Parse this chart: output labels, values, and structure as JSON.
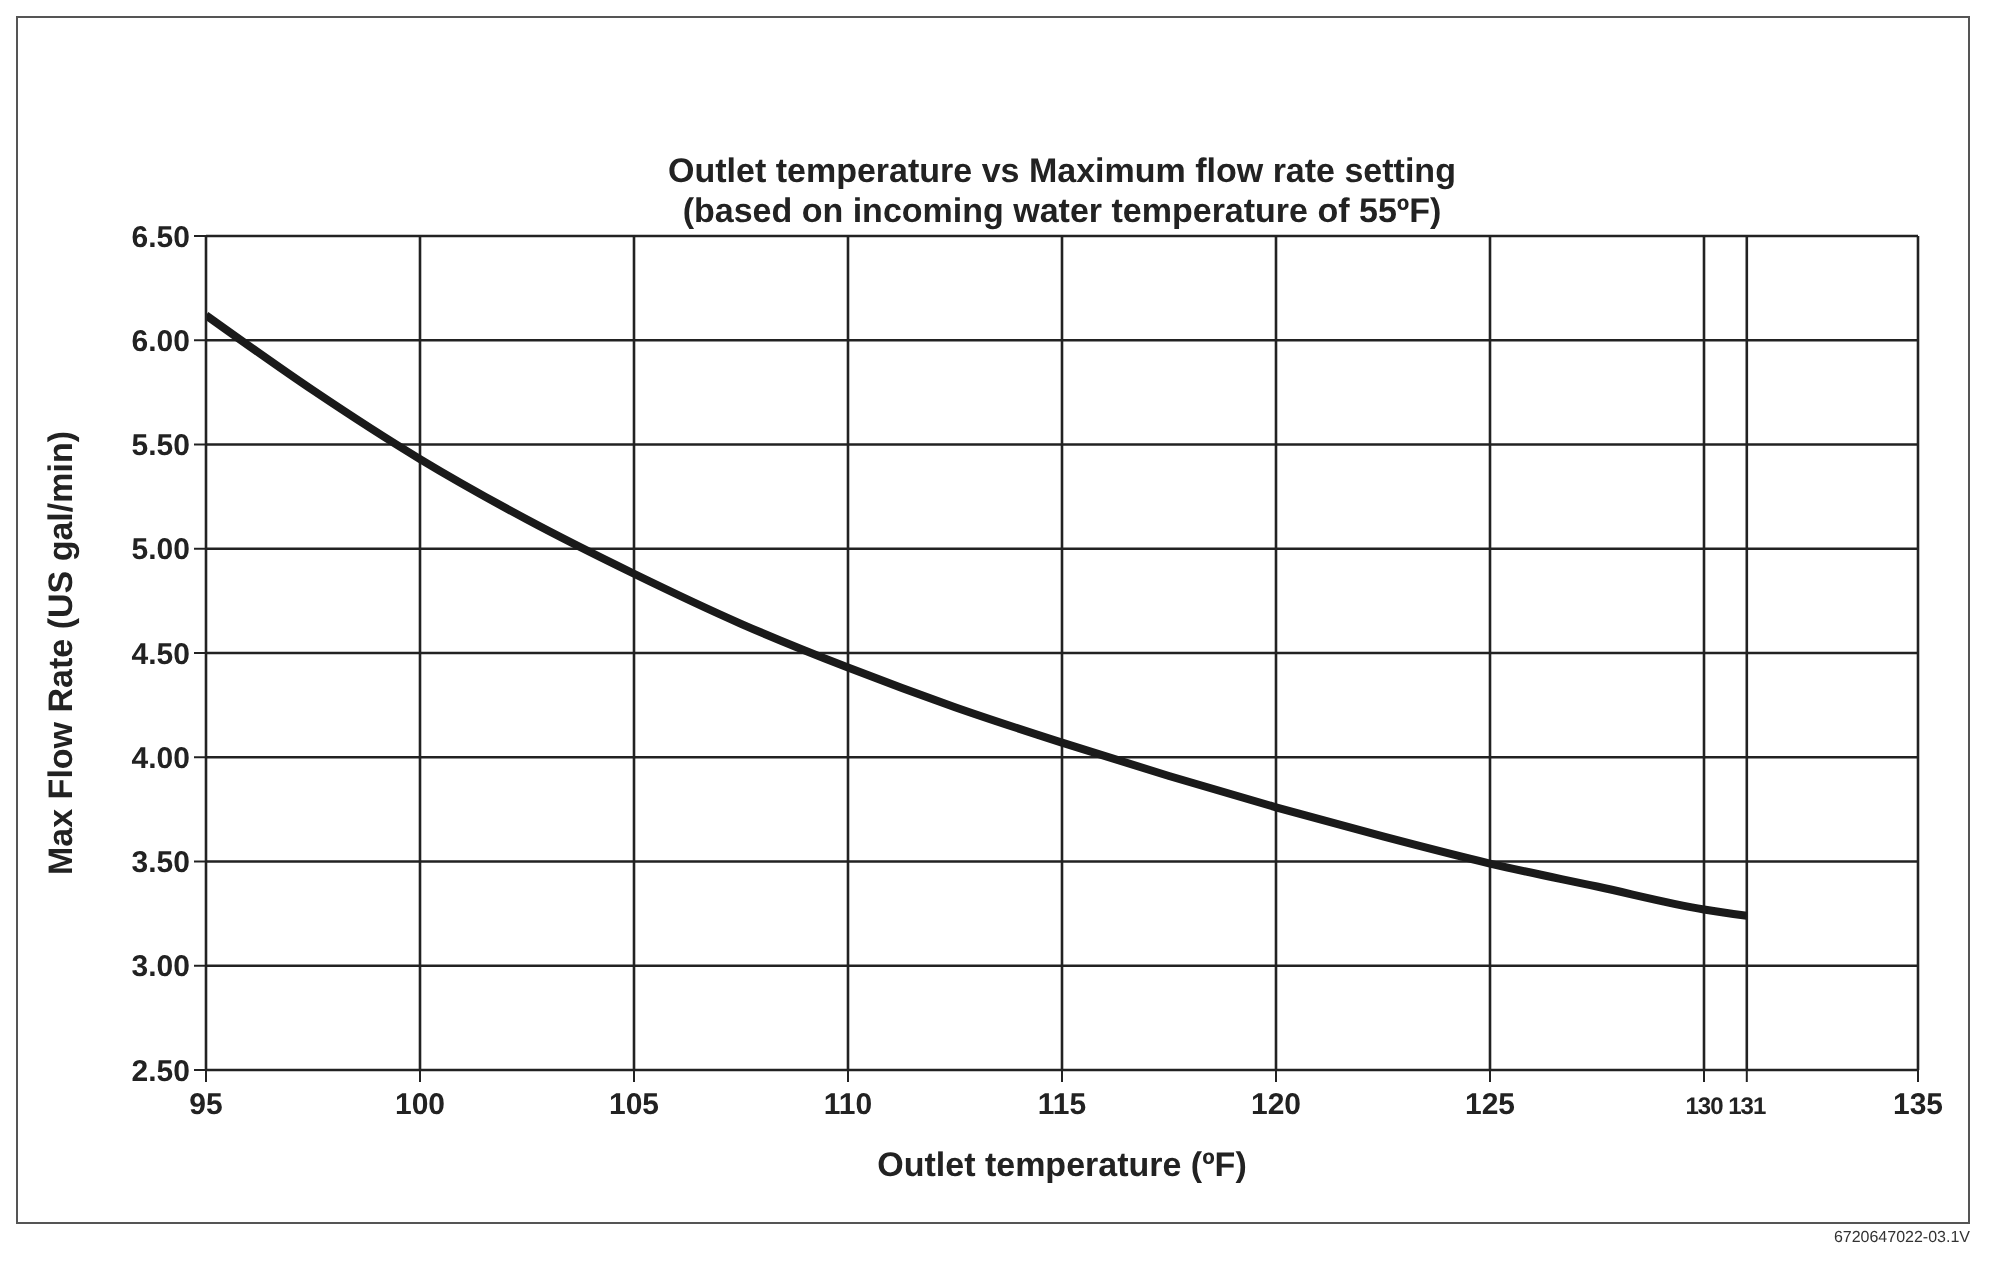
{
  "chart_data": {
    "type": "line",
    "title": "Outlet temperature vs Maximum flow rate setting",
    "subtitle": "(based on incoming water temperature of 55ºF)",
    "xlabel": "Outlet temperature (ºF)",
    "ylabel": "Max Flow Rate (US gal/min)",
    "x": [
      95,
      97.5,
      100,
      102.5,
      105,
      107.5,
      110,
      112.5,
      115,
      117.5,
      120,
      122.5,
      125,
      127.5,
      130,
      131
    ],
    "series": [
      {
        "color": "#1a1a1a",
        "values": [
          6.12,
          5.76,
          5.43,
          5.14,
          4.88,
          4.64,
          4.43,
          4.24,
          4.07,
          3.91,
          3.76,
          3.62,
          3.49,
          3.38,
          3.27,
          3.24
        ]
      }
    ],
    "xlim": [
      95,
      135
    ],
    "xticks": [
      95,
      100,
      105,
      110,
      115,
      120,
      125,
      130,
      131,
      135
    ],
    "ylim": [
      2.5,
      6.5
    ],
    "yticks": [
      {
        "value": 2.5,
        "label": "2.50"
      },
      {
        "value": 3,
        "label": "3.00"
      },
      {
        "value": 3.5,
        "label": "3.50"
      },
      {
        "value": 4,
        "label": "4.00"
      },
      {
        "value": 4.5,
        "label": "4.50"
      },
      {
        "value": 5,
        "label": "5.00"
      },
      {
        "value": 5.5,
        "label": "5.50"
      },
      {
        "value": 6,
        "label": "6.00"
      },
      {
        "value": 6.5,
        "label": "6.50"
      }
    ],
    "grid": true,
    "annotations": [
      "6720647022-03.1V"
    ]
  }
}
